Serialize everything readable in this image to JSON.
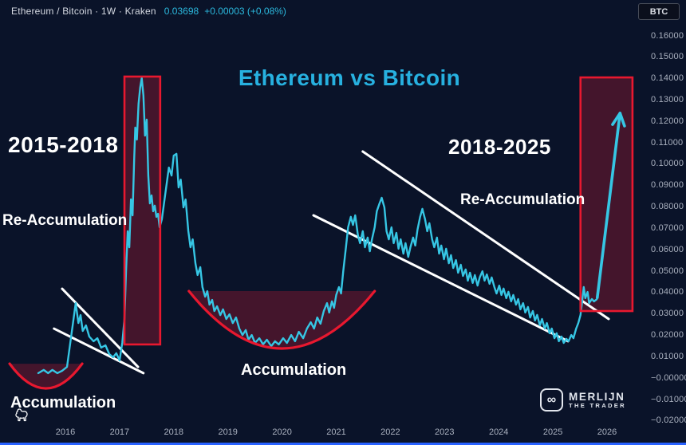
{
  "header": {
    "symbol_text": "Ethereum / Bitcoin · 1W · Kraken",
    "price": "0.03698",
    "change": "+0.00003 (+0.08%)"
  },
  "toolbar": {
    "currency_label": "BTC"
  },
  "title": "Ethereum vs Bitcoin",
  "labels": {
    "period_left": "2015-2018",
    "reaccum_left": "Re-Accumulation",
    "accum_left": "Accumulation",
    "accum_mid": "Accumulation",
    "period_right": "2018-2025",
    "reaccum_right": "Re-Accumulation"
  },
  "brand": {
    "infinity": "∞",
    "name_top": "MERLIJN",
    "name_bottom": "THE TRADER"
  },
  "colors": {
    "background": "#0a1329",
    "line": "#36c6e4",
    "red": "#e8182f",
    "shade": "rgba(236,28,54,0.26)",
    "white": "#ffffff",
    "title": "#27b1e0",
    "axis_text": "#aab1bf",
    "accent_blue": "#2962ff"
  },
  "y_axis": {
    "labels": [
      "0.16000",
      "0.15000",
      "0.14000",
      "0.13000",
      "0.12000",
      "0.11000",
      "0.10000",
      "0.09000",
      "0.08000",
      "0.07000",
      "0.06000",
      "0.05000",
      "0.04000",
      "0.03000",
      "0.02000",
      "0.01000",
      "−0.00000",
      "−0.01000",
      "−0.02000"
    ],
    "values": [
      0.16,
      0.15,
      0.14,
      0.13,
      0.12,
      0.11,
      0.1,
      0.09,
      0.08,
      0.07,
      0.06,
      0.05,
      0.04,
      0.03,
      0.02,
      0.01,
      0.0,
      -0.01,
      -0.02
    ]
  },
  "x_axis": {
    "labels": [
      "2016",
      "2017",
      "2018",
      "2019",
      "2020",
      "2021",
      "2022",
      "2023",
      "2024",
      "2025",
      "2026"
    ],
    "values": [
      2016,
      2017,
      2018,
      2019,
      2020,
      2021,
      2022,
      2023,
      2024,
      2025,
      2026
    ]
  },
  "chart_data": {
    "type": "line",
    "title": "Ethereum vs Bitcoin",
    "symbol": "ETH/BTC",
    "timeframe": "1W",
    "exchange": "Kraken",
    "last_price": 0.03698,
    "change": 3e-05,
    "change_pct": 0.08,
    "ylim": [
      -0.02,
      0.16
    ],
    "xlim": [
      2015.4,
      2026.6
    ],
    "grid": false,
    "series": [
      {
        "name": "ETHBTC",
        "points": [
          [
            2015.5,
            0.0025
          ],
          [
            2015.6,
            0.004
          ],
          [
            2015.68,
            0.0025
          ],
          [
            2015.76,
            0.004
          ],
          [
            2015.85,
            0.0025
          ],
          [
            2015.94,
            0.0036
          ],
          [
            2016.03,
            0.0054
          ],
          [
            2016.09,
            0.0166
          ],
          [
            2016.15,
            0.0278
          ],
          [
            2016.19,
            0.0352
          ],
          [
            2016.24,
            0.0259
          ],
          [
            2016.28,
            0.0296
          ],
          [
            2016.32,
            0.0222
          ],
          [
            2016.38,
            0.0248
          ],
          [
            2016.44,
            0.0196
          ],
          [
            2016.52,
            0.0174
          ],
          [
            2016.59,
            0.0188
          ],
          [
            2016.66,
            0.0144
          ],
          [
            2016.74,
            0.0155
          ],
          [
            2016.81,
            0.0114
          ],
          [
            2016.88,
            0.0099
          ],
          [
            2016.94,
            0.0118
          ],
          [
            2017.0,
            0.0084
          ],
          [
            2017.05,
            0.0166
          ],
          [
            2017.09,
            0.0278
          ],
          [
            2017.12,
            0.0501
          ],
          [
            2017.15,
            0.0688
          ],
          [
            2017.18,
            0.0613
          ],
          [
            2017.21,
            0.0837
          ],
          [
            2017.24,
            0.0762
          ],
          [
            2017.27,
            0.1023
          ],
          [
            2017.29,
            0.1172
          ],
          [
            2017.32,
            0.1116
          ],
          [
            2017.35,
            0.1283
          ],
          [
            2017.38,
            0.1358
          ],
          [
            2017.41,
            0.1403
          ],
          [
            2017.44,
            0.1321
          ],
          [
            2017.47,
            0.1134
          ],
          [
            2017.5,
            0.1209
          ],
          [
            2017.53,
            0.0948
          ],
          [
            2017.56,
            0.0818
          ],
          [
            2017.59,
            0.0855
          ],
          [
            2017.62,
            0.0781
          ],
          [
            2017.65,
            0.0807
          ],
          [
            2017.68,
            0.0755
          ],
          [
            2017.71,
            0.0769
          ],
          [
            2017.74,
            0.0706
          ],
          [
            2017.78,
            0.0743
          ],
          [
            2017.83,
            0.0837
          ],
          [
            2017.87,
            0.0911
          ],
          [
            2017.91,
            0.0985
          ],
          [
            2017.96,
            0.0948
          ],
          [
            2018.0,
            0.1041
          ],
          [
            2018.05,
            0.1049
          ],
          [
            2018.09,
            0.0892
          ],
          [
            2018.13,
            0.0929
          ],
          [
            2018.18,
            0.0799
          ],
          [
            2018.22,
            0.0836
          ],
          [
            2018.27,
            0.0688
          ],
          [
            2018.31,
            0.0613
          ],
          [
            2018.35,
            0.065
          ],
          [
            2018.4,
            0.0538
          ],
          [
            2018.44,
            0.0483
          ],
          [
            2018.49,
            0.052
          ],
          [
            2018.53,
            0.0427
          ],
          [
            2018.58,
            0.0382
          ],
          [
            2018.62,
            0.0408
          ],
          [
            2018.66,
            0.0345
          ],
          [
            2018.71,
            0.0367
          ],
          [
            2018.75,
            0.0315
          ],
          [
            2018.8,
            0.0337
          ],
          [
            2018.86,
            0.0296
          ],
          [
            2018.91,
            0.0323
          ],
          [
            2018.97,
            0.0278
          ],
          [
            2019.03,
            0.03
          ],
          [
            2019.09,
            0.0259
          ],
          [
            2019.15,
            0.0285
          ],
          [
            2019.21,
            0.0233
          ],
          [
            2019.27,
            0.0203
          ],
          [
            2019.33,
            0.0226
          ],
          [
            2019.38,
            0.0181
          ],
          [
            2019.44,
            0.0203
          ],
          [
            2019.5,
            0.0166
          ],
          [
            2019.58,
            0.0188
          ],
          [
            2019.65,
            0.0159
          ],
          [
            2019.72,
            0.0181
          ],
          [
            2019.8,
            0.0151
          ],
          [
            2019.87,
            0.0174
          ],
          [
            2019.94,
            0.0159
          ],
          [
            2020.02,
            0.0188
          ],
          [
            2020.09,
            0.0166
          ],
          [
            2020.17,
            0.0203
          ],
          [
            2020.24,
            0.0174
          ],
          [
            2020.31,
            0.0218
          ],
          [
            2020.39,
            0.0188
          ],
          [
            2020.46,
            0.0233
          ],
          [
            2020.53,
            0.0263
          ],
          [
            2020.59,
            0.0233
          ],
          [
            2020.65,
            0.0285
          ],
          [
            2020.71,
            0.0256
          ],
          [
            2020.77,
            0.0315
          ],
          [
            2020.83,
            0.0352
          ],
          [
            2020.87,
            0.0308
          ],
          [
            2020.92,
            0.036
          ],
          [
            2020.96,
            0.033
          ],
          [
            2021.0,
            0.039
          ],
          [
            2021.05,
            0.0427
          ],
          [
            2021.09,
            0.0397
          ],
          [
            2021.13,
            0.0501
          ],
          [
            2021.18,
            0.0613
          ],
          [
            2021.22,
            0.0706
          ],
          [
            2021.27,
            0.0755
          ],
          [
            2021.31,
            0.0717
          ],
          [
            2021.35,
            0.0762
          ],
          [
            2021.4,
            0.0669
          ],
          [
            2021.44,
            0.0632
          ],
          [
            2021.49,
            0.0688
          ],
          [
            2021.53,
            0.0613
          ],
          [
            2021.58,
            0.0658
          ],
          [
            2021.62,
            0.0594
          ],
          [
            2021.66,
            0.065
          ],
          [
            2021.71,
            0.0706
          ],
          [
            2021.75,
            0.0781
          ],
          [
            2021.8,
            0.0818
          ],
          [
            2021.84,
            0.0844
          ],
          [
            2021.89,
            0.0799
          ],
          [
            2021.93,
            0.0688
          ],
          [
            2021.97,
            0.065
          ],
          [
            2022.02,
            0.0706
          ],
          [
            2022.06,
            0.0632
          ],
          [
            2022.11,
            0.068
          ],
          [
            2022.15,
            0.0606
          ],
          [
            2022.19,
            0.065
          ],
          [
            2022.24,
            0.0583
          ],
          [
            2022.28,
            0.0632
          ],
          [
            2022.33,
            0.0568
          ],
          [
            2022.37,
            0.0613
          ],
          [
            2022.42,
            0.0658
          ],
          [
            2022.46,
            0.0621
          ],
          [
            2022.5,
            0.0695
          ],
          [
            2022.55,
            0.0755
          ],
          [
            2022.59,
            0.0792
          ],
          [
            2022.64,
            0.0743
          ],
          [
            2022.68,
            0.0688
          ],
          [
            2022.72,
            0.0725
          ],
          [
            2022.77,
            0.065
          ],
          [
            2022.81,
            0.0613
          ],
          [
            2022.86,
            0.0658
          ],
          [
            2022.9,
            0.0583
          ],
          [
            2022.94,
            0.0621
          ],
          [
            2022.99,
            0.0557
          ],
          [
            2023.03,
            0.0606
          ],
          [
            2023.08,
            0.0538
          ],
          [
            2023.12,
            0.0576
          ],
          [
            2023.16,
            0.0516
          ],
          [
            2023.21,
            0.0553
          ],
          [
            2023.25,
            0.0494
          ],
          [
            2023.3,
            0.0531
          ],
          [
            2023.34,
            0.0479
          ],
          [
            2023.39,
            0.0509
          ],
          [
            2023.43,
            0.0457
          ],
          [
            2023.47,
            0.0494
          ],
          [
            2023.52,
            0.0446
          ],
          [
            2023.56,
            0.0483
          ],
          [
            2023.61,
            0.0434
          ],
          [
            2023.65,
            0.0472
          ],
          [
            2023.7,
            0.0501
          ],
          [
            2023.74,
            0.0457
          ],
          [
            2023.78,
            0.0486
          ],
          [
            2023.83,
            0.0442
          ],
          [
            2023.87,
            0.0472
          ],
          [
            2023.92,
            0.0427
          ],
          [
            2023.96,
            0.0397
          ],
          [
            2024.01,
            0.0434
          ],
          [
            2024.05,
            0.039
          ],
          [
            2024.09,
            0.042
          ],
          [
            2024.14,
            0.0375
          ],
          [
            2024.18,
            0.0405
          ],
          [
            2024.23,
            0.036
          ],
          [
            2024.27,
            0.039
          ],
          [
            2024.32,
            0.0345
          ],
          [
            2024.36,
            0.0371
          ],
          [
            2024.4,
            0.0323
          ],
          [
            2024.45,
            0.0352
          ],
          [
            2024.49,
            0.0308
          ],
          [
            2024.54,
            0.0334
          ],
          [
            2024.58,
            0.0285
          ],
          [
            2024.63,
            0.0315
          ],
          [
            2024.67,
            0.0271
          ],
          [
            2024.71,
            0.0297
          ],
          [
            2024.76,
            0.0248
          ],
          [
            2024.8,
            0.0278
          ],
          [
            2024.85,
            0.0233
          ],
          [
            2024.89,
            0.0259
          ],
          [
            2024.94,
            0.0211
          ],
          [
            2024.98,
            0.0233
          ],
          [
            2025.03,
            0.0188
          ],
          [
            2025.07,
            0.0211
          ],
          [
            2025.11,
            0.0174
          ],
          [
            2025.16,
            0.0196
          ],
          [
            2025.2,
            0.0166
          ],
          [
            2025.25,
            0.0185
          ],
          [
            2025.29,
            0.0174
          ],
          [
            2025.34,
            0.0203
          ],
          [
            2025.38,
            0.0188
          ],
          [
            2025.43,
            0.0233
          ],
          [
            2025.47,
            0.0259
          ],
          [
            2025.51,
            0.0296
          ],
          [
            2025.54,
            0.036
          ],
          [
            2025.57,
            0.0427
          ],
          [
            2025.6,
            0.0375
          ],
          [
            2025.64,
            0.0404
          ],
          [
            2025.67,
            0.0352
          ],
          [
            2025.72,
            0.0371
          ],
          [
            2025.76,
            0.036
          ],
          [
            2025.81,
            0.037
          ]
        ]
      }
    ],
    "annotations": {
      "boxes": [
        {
          "name": "2017-top-box",
          "x1": 2017.09,
          "x2": 2017.75,
          "y_bottom": 0.0159,
          "y_top": 0.141
        },
        {
          "name": "2025-breakout-box",
          "x1": 2025.51,
          "x2": 2026.47,
          "y_bottom": 0.0315,
          "y_top": 0.1406
        }
      ],
      "cups": [
        {
          "name": "accumulation-2015",
          "x1": 2014.97,
          "x2": 2016.31,
          "rim": 0.0069,
          "ctrl": -0.0162
        },
        {
          "name": "accumulation-2019-2020",
          "x1": 2018.28,
          "x2": 2021.71,
          "rim": 0.0408,
          "ctrl": -0.0128
        }
      ],
      "trendlines": [
        {
          "name": "wedge-upper",
          "x1": 2015.94,
          "y1": 0.0419,
          "x2": 2017.34,
          "y2": 0.0054
        },
        {
          "name": "wedge-lower",
          "x1": 2015.79,
          "y1": 0.0233,
          "x2": 2017.44,
          "y2": 0.0025
        },
        {
          "name": "channel-upper",
          "x1": 2021.49,
          "y1": 0.106,
          "x2": 2026.03,
          "y2": 0.0278
        },
        {
          "name": "channel-lower",
          "x1": 2020.58,
          "y1": 0.0762,
          "x2": 2025.28,
          "y2": 0.0174
        }
      ],
      "arrow": {
        "x1": 2025.82,
        "y1": 0.0378,
        "x2": 2026.24,
        "y2": 0.1239
      }
    }
  }
}
